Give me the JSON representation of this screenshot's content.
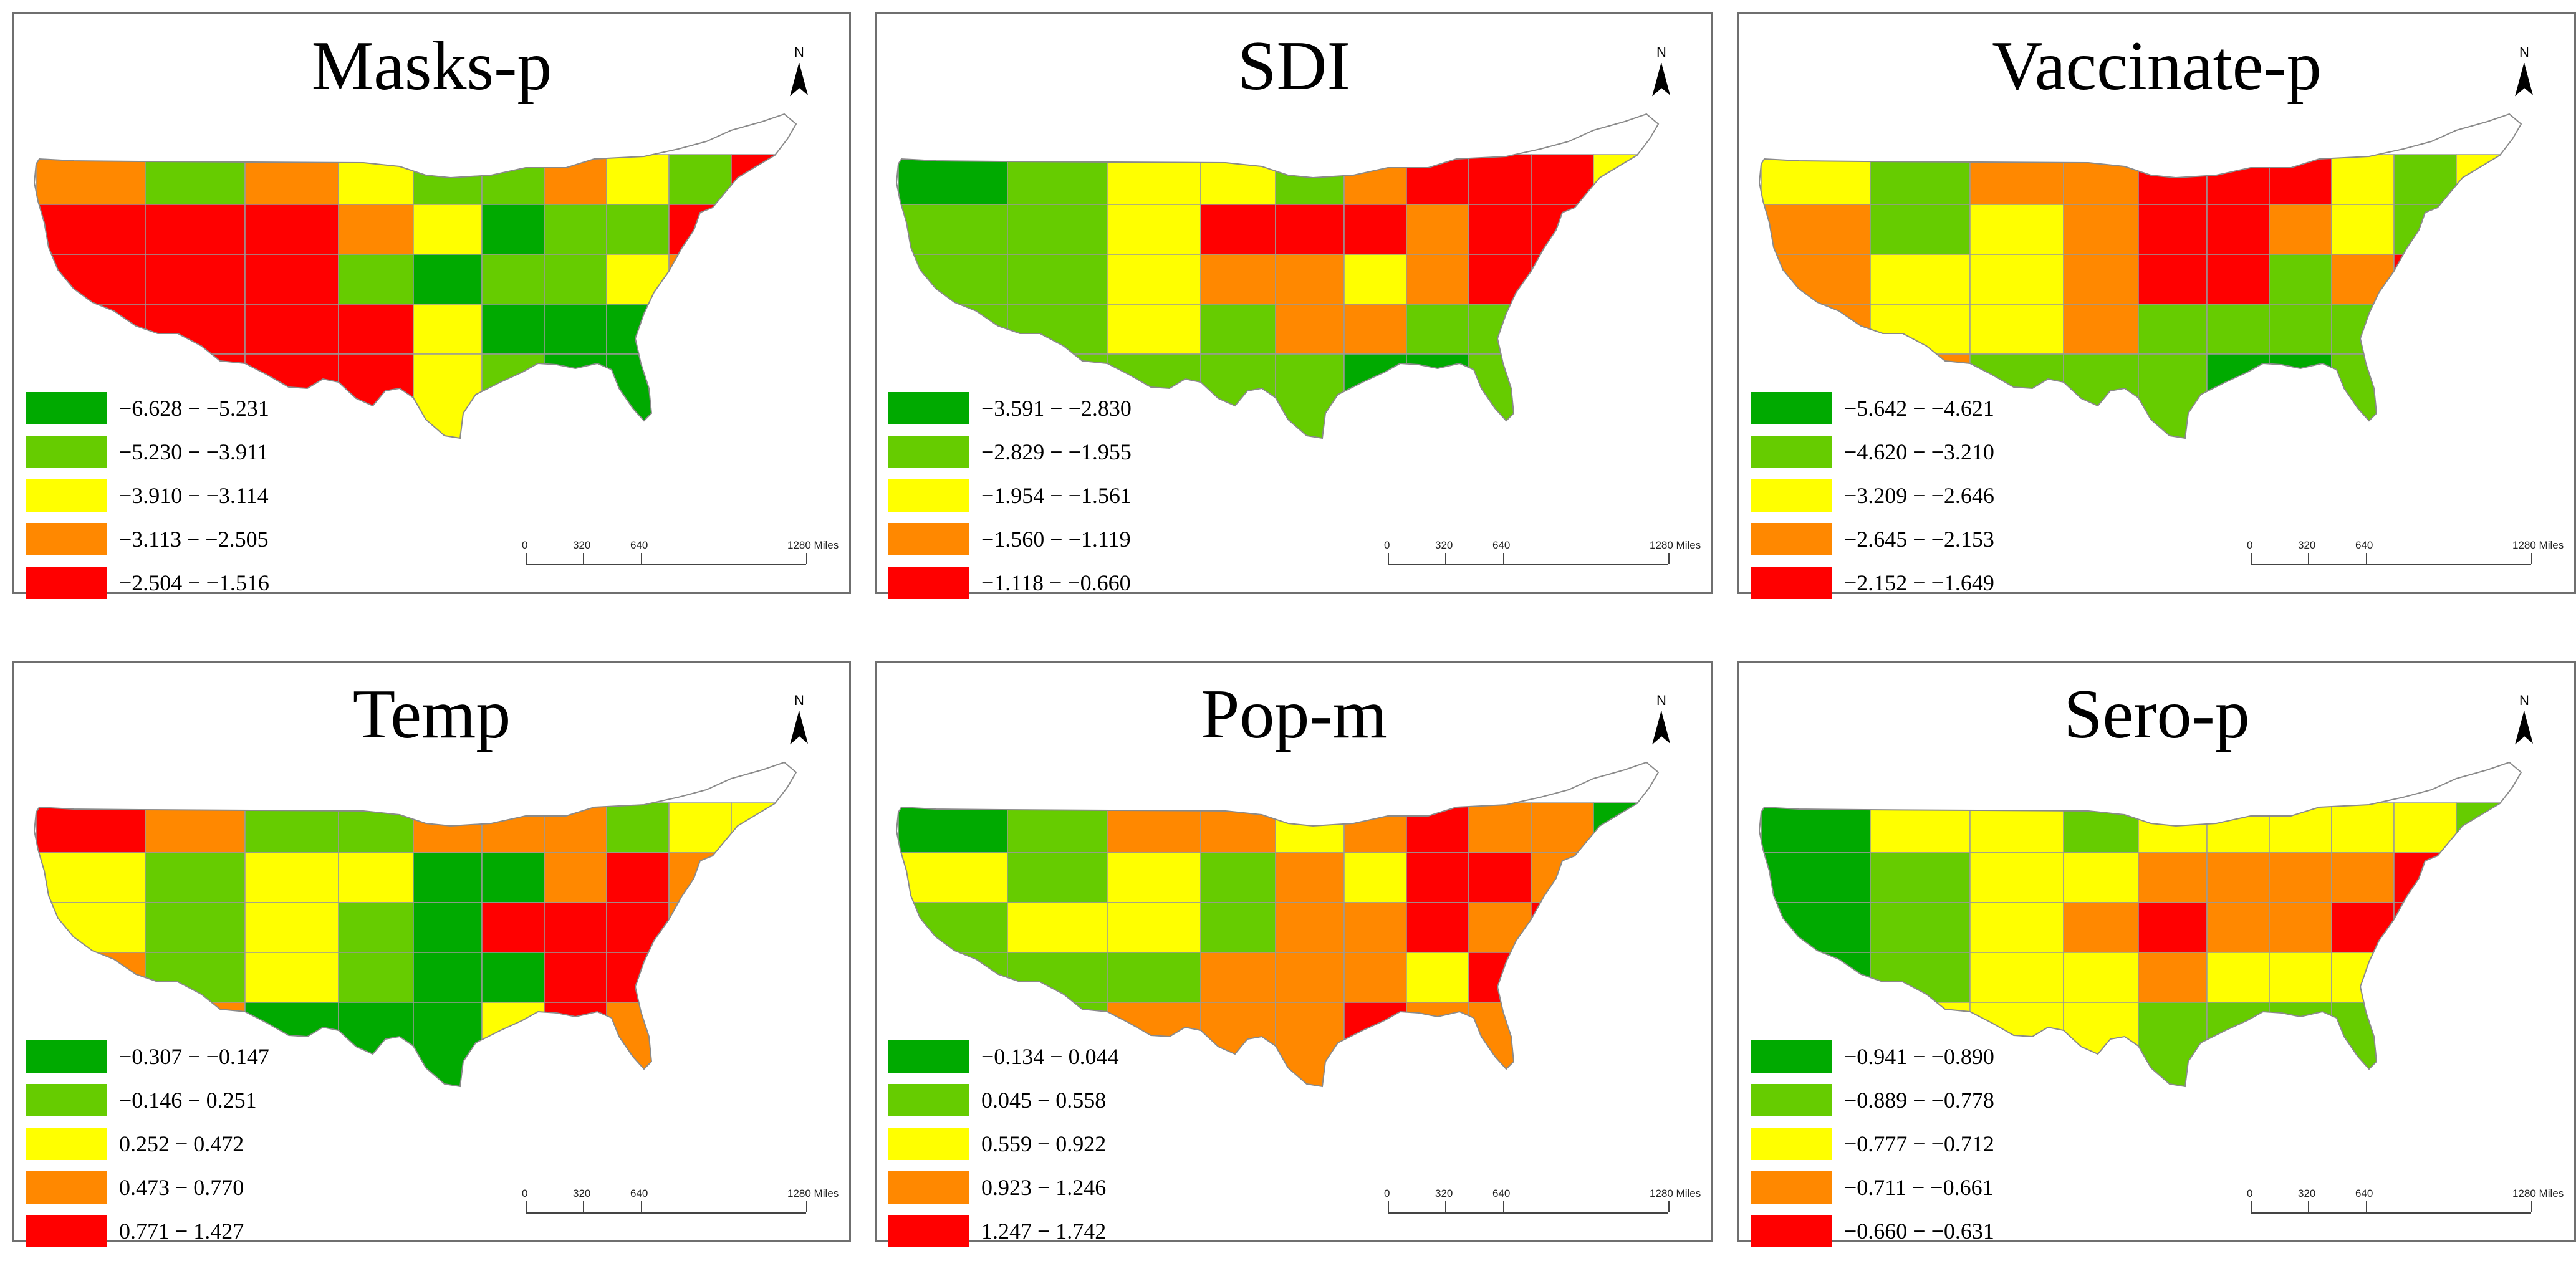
{
  "figure": {
    "panels": [
      {
        "title": "Masks-p",
        "north_label": "N",
        "colors": [
          "#00aa00",
          "#66cc00",
          "#ffff00",
          "#ff8800",
          "#ff0000"
        ],
        "legend": [
          "−6.628 − −5.231",
          "−5.230 − −3.911",
          "−3.910 − −3.114",
          "−3.113 − −2.505",
          "−2.504 − −1.516"
        ],
        "scale": {
          "labels": [
            "0",
            "320",
            "640",
            "1280 Miles"
          ]
        },
        "regions": [
          3,
          1,
          3,
          2,
          1,
          1,
          3,
          2,
          1,
          4,
          4,
          4,
          4,
          3,
          2,
          0,
          1,
          1,
          4,
          4,
          4,
          4,
          4,
          1,
          0,
          1,
          1,
          2,
          3,
          4,
          4,
          4,
          4,
          4,
          2,
          0,
          0,
          0,
          1,
          2,
          3,
          4,
          4,
          4,
          2,
          1,
          0,
          0,
          1,
          2
        ]
      },
      {
        "title": "SDI",
        "north_label": "N",
        "colors": [
          "#00aa00",
          "#66cc00",
          "#ffff00",
          "#ff8800",
          "#ff0000"
        ],
        "legend": [
          "−3.591 − −2.830",
          "−2.829 − −1.955",
          "−1.954 − −1.561",
          "−1.560 − −1.119",
          "−1.118 − −0.660"
        ],
        "scale": {
          "labels": [
            "0",
            "320",
            "640",
            "1280 Miles"
          ]
        },
        "regions": [
          0,
          1,
          2,
          2,
          1,
          3,
          4,
          4,
          4,
          2,
          1,
          1,
          2,
          4,
          4,
          4,
          3,
          4,
          4,
          4,
          1,
          1,
          2,
          3,
          3,
          2,
          3,
          4,
          4,
          3,
          1,
          1,
          2,
          1,
          3,
          3,
          1,
          1,
          3,
          2,
          1,
          1,
          1,
          1,
          1,
          0,
          0,
          1,
          1,
          1
        ]
      },
      {
        "title": "Vaccinate-p",
        "north_label": "N",
        "colors": [
          "#00aa00",
          "#66cc00",
          "#ffff00",
          "#ff8800",
          "#ff0000"
        ],
        "legend": [
          "−5.642 − −4.621",
          "−4.620 − −3.210",
          "−3.209 − −2.646",
          "−2.645 − −2.153",
          "−2.152 − −1.649"
        ],
        "scale": {
          "labels": [
            "0",
            "320",
            "640",
            "1280 Miles"
          ]
        },
        "regions": [
          2,
          1,
          3,
          3,
          4,
          4,
          4,
          2,
          1,
          2,
          3,
          1,
          2,
          3,
          4,
          4,
          3,
          2,
          1,
          1,
          3,
          2,
          2,
          3,
          4,
          4,
          1,
          3,
          4,
          2,
          3,
          2,
          2,
          3,
          1,
          1,
          1,
          1,
          2,
          2,
          3,
          3,
          1,
          1,
          1,
          0,
          0,
          1,
          1,
          2
        ]
      },
      {
        "title": "Temp",
        "north_label": "N",
        "colors": [
          "#00aa00",
          "#66cc00",
          "#ffff00",
          "#ff8800",
          "#ff0000"
        ],
        "legend": [
          "−0.307 − −0.147",
          "−0.146 − 0.251",
          "0.252 − 0.472",
          "0.473 − 0.770",
          "0.771 − 1.427"
        ],
        "scale": {
          "labels": [
            "0",
            "320",
            "640",
            "1280 Miles"
          ]
        },
        "regions": [
          4,
          3,
          1,
          1,
          3,
          3,
          3,
          1,
          2,
          2,
          2,
          1,
          2,
          2,
          0,
          0,
          3,
          4,
          3,
          2,
          2,
          1,
          2,
          1,
          0,
          4,
          4,
          4,
          3,
          3,
          3,
          1,
          2,
          1,
          0,
          0,
          4,
          4,
          3,
          3,
          3,
          3,
          0,
          0,
          0,
          2,
          4,
          3,
          3,
          2
        ]
      },
      {
        "title": "Pop-m",
        "north_label": "N",
        "colors": [
          "#00aa00",
          "#66cc00",
          "#ffff00",
          "#ff8800",
          "#ff0000"
        ],
        "legend": [
          "−0.134 − 0.044",
          "0.045 − 0.558",
          "0.559 − 0.922",
          "0.923 − 1.246",
          "1.247 − 1.742"
        ],
        "scale": {
          "labels": [
            "0",
            "320",
            "640",
            "1280 Miles"
          ]
        },
        "regions": [
          0,
          1,
          3,
          3,
          2,
          3,
          4,
          3,
          3,
          0,
          2,
          1,
          2,
          1,
          3,
          2,
          4,
          4,
          3,
          2,
          1,
          2,
          2,
          1,
          3,
          3,
          4,
          3,
          4,
          4,
          1,
          1,
          1,
          3,
          3,
          3,
          2,
          4,
          3,
          4,
          1,
          1,
          3,
          3,
          3,
          4,
          3,
          3,
          2,
          2
        ]
      },
      {
        "title": "Sero-p",
        "north_label": "N",
        "colors": [
          "#00aa00",
          "#66cc00",
          "#ffff00",
          "#ff8800",
          "#ff0000"
        ],
        "legend": [
          "−0.941 − −0.890",
          "−0.889 − −0.778",
          "−0.777 − −0.712",
          "−0.711 − −0.661",
          "−0.660 − −0.631"
        ],
        "scale": {
          "labels": [
            "0",
            "320",
            "640",
            "1280 Miles"
          ]
        },
        "regions": [
          0,
          2,
          2,
          1,
          2,
          2,
          2,
          2,
          2,
          1,
          0,
          1,
          2,
          2,
          3,
          3,
          3,
          3,
          4,
          4,
          0,
          1,
          2,
          3,
          4,
          3,
          3,
          4,
          4,
          3,
          0,
          1,
          2,
          2,
          3,
          2,
          2,
          2,
          2,
          2,
          1,
          2,
          2,
          2,
          1,
          1,
          1,
          1,
          2,
          2
        ]
      }
    ]
  }
}
